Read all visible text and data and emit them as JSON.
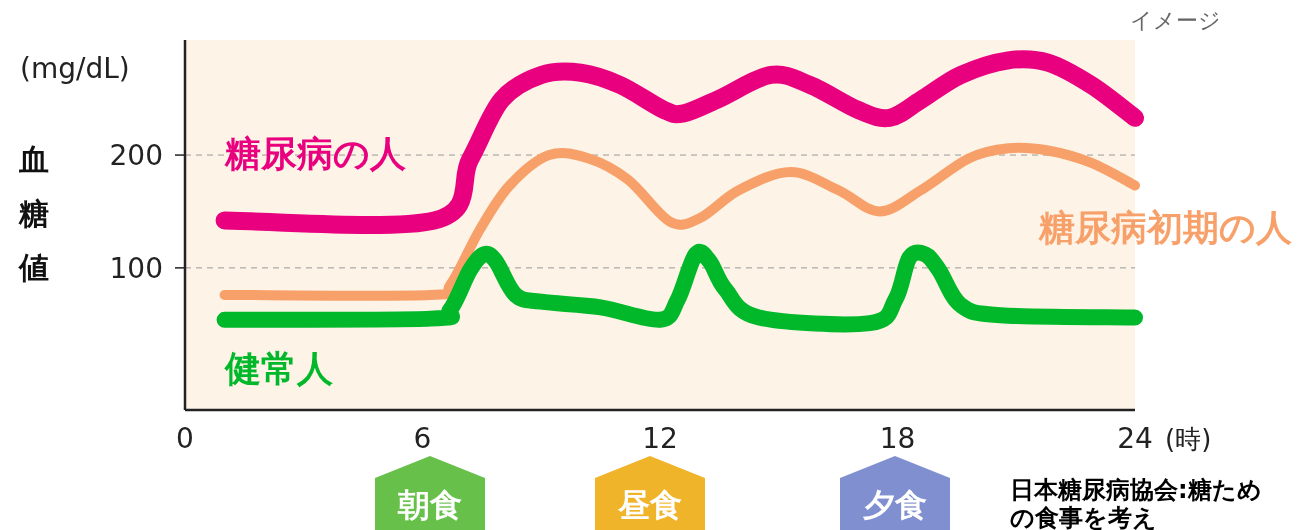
{
  "chart_data": {
    "type": "line",
    "ylabel": "血糖値",
    "xlabel": "(時)",
    "xlim": [
      0,
      24
    ],
    "xticks": [
      0,
      6,
      12,
      18,
      24
    ],
    "ylim": [
      -26,
      302
    ],
    "yticks": [
      100,
      200
    ],
    "grid": "y",
    "line_style": "solid",
    "marker": "none",
    "series": [
      {
        "name": "糖尿病の人",
        "color": "#e8007f",
        "x": [
          1,
          6.3,
          7.2,
          8.0,
          9.0,
          10,
          11,
          12.1,
          12.6,
          13.5,
          14.8,
          15.8,
          17.0,
          17.8,
          18.6,
          19.6,
          20.8,
          21.8,
          22.9,
          24
        ],
        "values": [
          142,
          142,
          196,
          249,
          271,
          273,
          262,
          240,
          237,
          250,
          271,
          262,
          240,
          233,
          249,
          271,
          284,
          282,
          262,
          233
        ]
      },
      {
        "name": "糖尿病初期の人",
        "color": "#f8a06a",
        "x": [
          1,
          6.2,
          6.7,
          7.45,
          8.2,
          9.2,
          10.2,
          11.2,
          12.25,
          13.0,
          14.0,
          15.3,
          16.5,
          17.55,
          18.6,
          19.8,
          20.8,
          21.8,
          22.9,
          24
        ],
        "values": [
          76,
          76,
          85,
          134,
          173,
          200,
          197,
          178,
          141,
          144,
          169,
          185,
          169,
          150,
          169,
          197,
          206,
          204,
          193,
          173
        ]
      },
      {
        "name": "健常人",
        "color": "#00b82a",
        "x": [
          1,
          6.2,
          6.7,
          7.2,
          7.55,
          7.85,
          8.35,
          9.0,
          10.5,
          12.0,
          12.45,
          12.9,
          13.25,
          13.65,
          14.5,
          17.3,
          17.95,
          18.3,
          18.7,
          19.05,
          19.6,
          20.6,
          24
        ],
        "values": [
          54,
          55,
          63,
          98,
          112,
          106,
          76,
          70,
          65,
          54,
          72,
          112,
          106,
          81,
          56,
          51,
          72,
          109,
          112,
          98,
          67,
          58,
          56
        ]
      }
    ],
    "annotations": [
      "イメージ",
      "(mg/dL)",
      "朝食",
      "昼食",
      "夕食",
      "日本糖尿病協会:糖ための食事を考え"
    ]
  }
}
